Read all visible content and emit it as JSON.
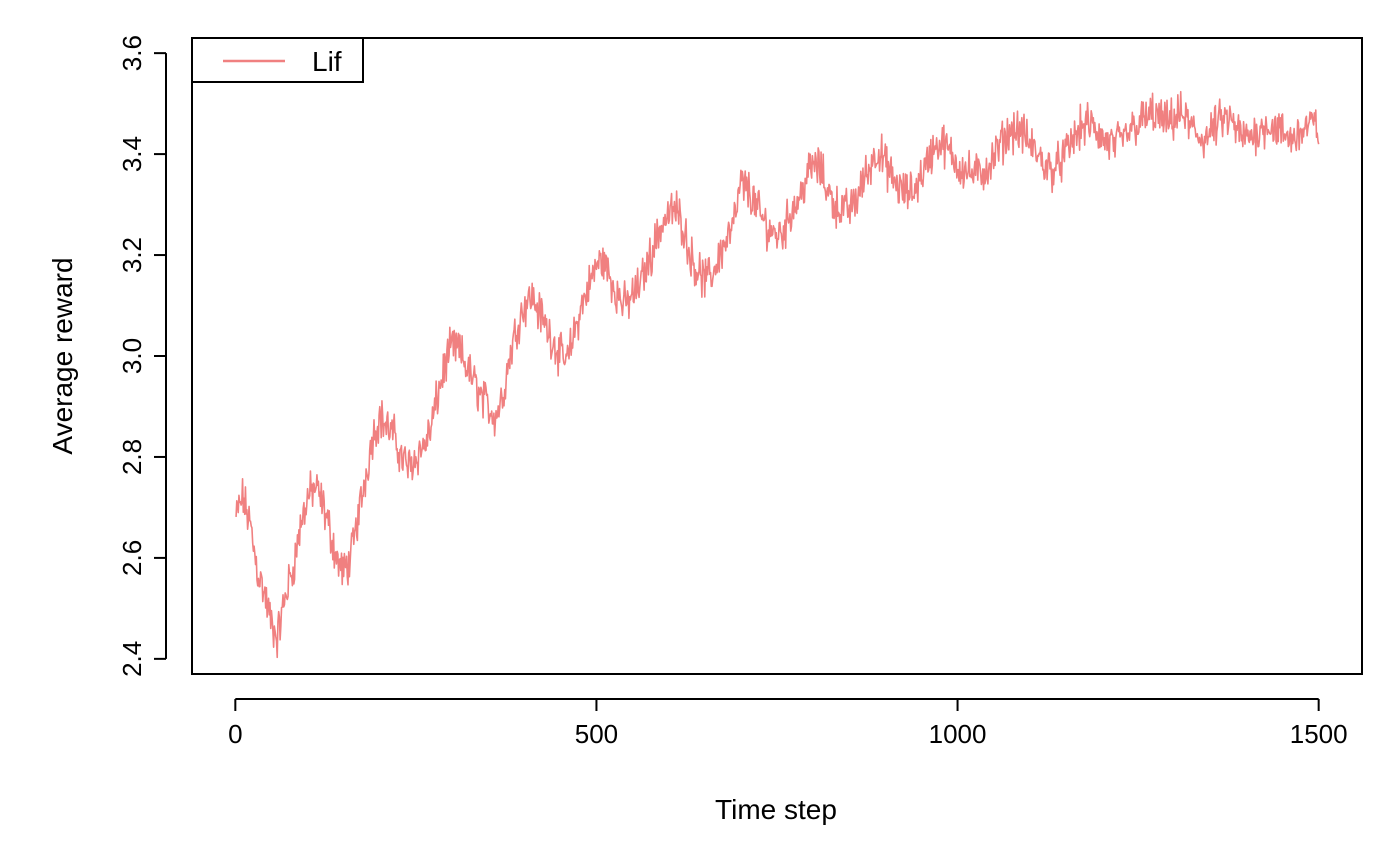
{
  "chart_data": {
    "type": "line",
    "title": "",
    "xlabel": "Time step",
    "ylabel": "Average reward",
    "xlim": [
      -60,
      1560
    ],
    "ylim": [
      2.37,
      3.63
    ],
    "x_ticks": [
      0,
      500,
      1000,
      1500
    ],
    "y_ticks": [
      2.4,
      2.6,
      2.8,
      3.0,
      3.2,
      3.4,
      3.6
    ],
    "x_tick_labels": [
      "0",
      "500",
      "1000",
      "1500"
    ],
    "y_tick_labels": [
      "2.4",
      "2.6",
      "2.8",
      "3.0",
      "3.2",
      "3.4",
      "3.6"
    ],
    "grid": false,
    "legend": {
      "position": "top-left",
      "entries": [
        "Lif"
      ]
    },
    "series": [
      {
        "name": "Lif",
        "color": "#F08080",
        "x_start": 1,
        "x_end": 1500,
        "anchors": [
          [
            1,
            2.68
          ],
          [
            10,
            2.72
          ],
          [
            20,
            2.67
          ],
          [
            30,
            2.58
          ],
          [
            40,
            2.53
          ],
          [
            50,
            2.47
          ],
          [
            58,
            2.44
          ],
          [
            70,
            2.53
          ],
          [
            80,
            2.58
          ],
          [
            90,
            2.66
          ],
          [
            100,
            2.72
          ],
          [
            110,
            2.74
          ],
          [
            120,
            2.71
          ],
          [
            130,
            2.66
          ],
          [
            140,
            2.6
          ],
          [
            150,
            2.57
          ],
          [
            160,
            2.6
          ],
          [
            170,
            2.68
          ],
          [
            180,
            2.76
          ],
          [
            190,
            2.84
          ],
          [
            200,
            2.88
          ],
          [
            210,
            2.86
          ],
          [
            220,
            2.84
          ],
          [
            230,
            2.8
          ],
          [
            240,
            2.78
          ],
          [
            250,
            2.8
          ],
          [
            260,
            2.82
          ],
          [
            270,
            2.85
          ],
          [
            280,
            2.92
          ],
          [
            290,
            2.98
          ],
          [
            300,
            3.02
          ],
          [
            310,
            3.01
          ],
          [
            320,
            2.98
          ],
          [
            330,
            2.95
          ],
          [
            340,
            2.92
          ],
          [
            350,
            2.9
          ],
          [
            360,
            2.88
          ],
          [
            370,
            2.92
          ],
          [
            380,
            3.0
          ],
          [
            390,
            3.06
          ],
          [
            400,
            3.1
          ],
          [
            410,
            3.12
          ],
          [
            420,
            3.09
          ],
          [
            430,
            3.06
          ],
          [
            440,
            3.03
          ],
          [
            450,
            3.0
          ],
          [
            460,
            2.99
          ],
          [
            470,
            3.05
          ],
          [
            480,
            3.1
          ],
          [
            490,
            3.14
          ],
          [
            500,
            3.18
          ],
          [
            510,
            3.19
          ],
          [
            520,
            3.15
          ],
          [
            530,
            3.12
          ],
          [
            540,
            3.1
          ],
          [
            550,
            3.12
          ],
          [
            560,
            3.14
          ],
          [
            570,
            3.18
          ],
          [
            580,
            3.22
          ],
          [
            590,
            3.26
          ],
          [
            600,
            3.28
          ],
          [
            610,
            3.29
          ],
          [
            620,
            3.26
          ],
          [
            630,
            3.2
          ],
          [
            640,
            3.17
          ],
          [
            650,
            3.15
          ],
          [
            660,
            3.16
          ],
          [
            670,
            3.2
          ],
          [
            680,
            3.23
          ],
          [
            690,
            3.26
          ],
          [
            700,
            3.34
          ],
          [
            710,
            3.33
          ],
          [
            720,
            3.3
          ],
          [
            730,
            3.27
          ],
          [
            740,
            3.25
          ],
          [
            750,
            3.24
          ],
          [
            760,
            3.25
          ],
          [
            770,
            3.29
          ],
          [
            780,
            3.31
          ],
          [
            790,
            3.35
          ],
          [
            800,
            3.38
          ],
          [
            810,
            3.37
          ],
          [
            820,
            3.33
          ],
          [
            830,
            3.3
          ],
          [
            840,
            3.29
          ],
          [
            850,
            3.29
          ],
          [
            860,
            3.31
          ],
          [
            870,
            3.35
          ],
          [
            880,
            3.38
          ],
          [
            890,
            3.41
          ],
          [
            900,
            3.38
          ],
          [
            910,
            3.35
          ],
          [
            920,
            3.33
          ],
          [
            930,
            3.32
          ],
          [
            940,
            3.33
          ],
          [
            950,
            3.36
          ],
          [
            960,
            3.39
          ],
          [
            970,
            3.42
          ],
          [
            980,
            3.42
          ],
          [
            990,
            3.4
          ],
          [
            1000,
            3.38
          ],
          [
            1010,
            3.37
          ],
          [
            1020,
            3.36
          ],
          [
            1030,
            3.36
          ],
          [
            1040,
            3.37
          ],
          [
            1050,
            3.39
          ],
          [
            1060,
            3.42
          ],
          [
            1070,
            3.44
          ],
          [
            1080,
            3.45
          ],
          [
            1090,
            3.44
          ],
          [
            1100,
            3.42
          ],
          [
            1110,
            3.4
          ],
          [
            1120,
            3.38
          ],
          [
            1130,
            3.37
          ],
          [
            1140,
            3.38
          ],
          [
            1150,
            3.4
          ],
          [
            1160,
            3.43
          ],
          [
            1170,
            3.45
          ],
          [
            1180,
            3.46
          ],
          [
            1190,
            3.45
          ],
          [
            1200,
            3.43
          ],
          [
            1210,
            3.42
          ],
          [
            1220,
            3.42
          ],
          [
            1230,
            3.43
          ],
          [
            1240,
            3.45
          ],
          [
            1250,
            3.46
          ],
          [
            1260,
            3.47
          ],
          [
            1270,
            3.48
          ],
          [
            1280,
            3.47
          ],
          [
            1290,
            3.46
          ],
          [
            1300,
            3.47
          ],
          [
            1310,
            3.48
          ],
          [
            1320,
            3.46
          ],
          [
            1330,
            3.44
          ],
          [
            1340,
            3.43
          ],
          [
            1350,
            3.44
          ],
          [
            1360,
            3.46
          ],
          [
            1370,
            3.47
          ],
          [
            1380,
            3.46
          ],
          [
            1390,
            3.44
          ],
          [
            1400,
            3.43
          ],
          [
            1410,
            3.44
          ],
          [
            1420,
            3.45
          ],
          [
            1430,
            3.46
          ],
          [
            1440,
            3.45
          ],
          [
            1450,
            3.44
          ],
          [
            1460,
            3.43
          ],
          [
            1470,
            3.44
          ],
          [
            1480,
            3.45
          ],
          [
            1490,
            3.46
          ],
          [
            1500,
            3.45
          ]
        ],
        "noise_amplitude": 0.03
      }
    ]
  }
}
